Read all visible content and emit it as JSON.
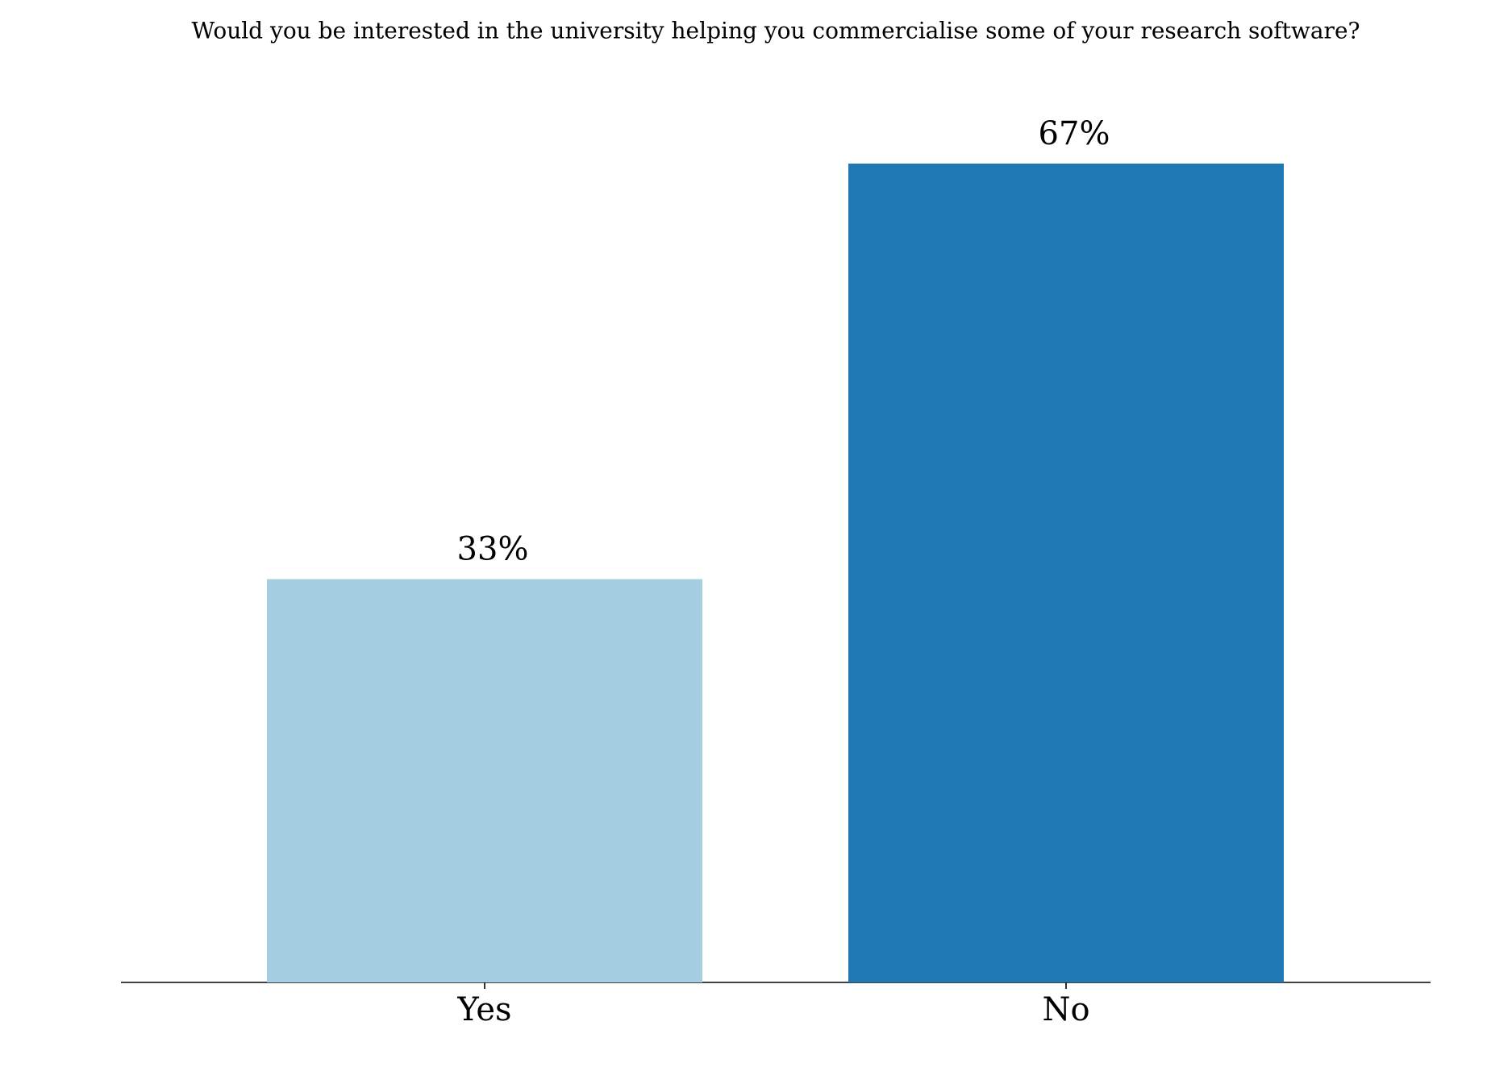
{
  "chart_data": {
    "type": "bar",
    "title": "Would you be interested in the university helping you commercialise some of your research software?",
    "categories": [
      "Yes",
      "No"
    ],
    "values": [
      33,
      67
    ],
    "value_labels": [
      "33%",
      "67%"
    ],
    "colors": [
      "#a6cee3",
      "#1f78b4"
    ]
  }
}
